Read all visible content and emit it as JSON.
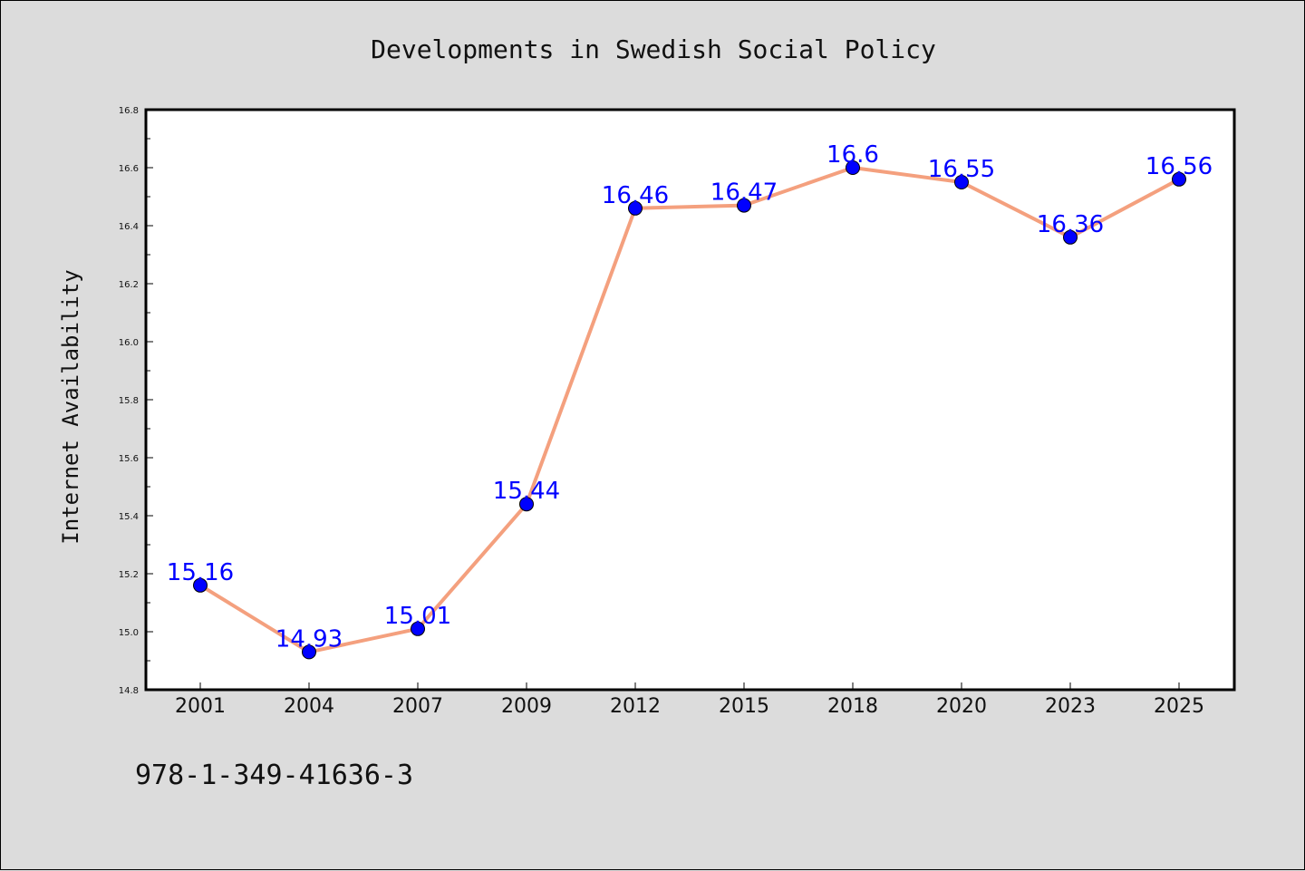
{
  "chart_data": {
    "type": "line",
    "title": "Developments in Swedish Social Policy",
    "ylabel": "Internet Availability",
    "xlabel": "",
    "categories": [
      "2001",
      "2004",
      "2007",
      "2009",
      "2012",
      "2015",
      "2018",
      "2020",
      "2023",
      "2025"
    ],
    "series": [
      {
        "values": [
          15.16,
          14.93,
          15.01,
          15.44,
          16.46,
          16.47,
          16.6,
          16.55,
          16.36,
          16.56
        ],
        "data_labels": [
          "15.16",
          "14.93",
          "15.01",
          "15.44",
          "16.46",
          "16.47",
          "16.6",
          "16.55",
          "16.36",
          "16.56"
        ],
        "line_color": "#f4a07e",
        "marker_color": "#0000ff",
        "label_color": "#0000ff"
      }
    ],
    "ylim": [
      14.8,
      16.8
    ],
    "yticks": [
      14.8,
      15.0,
      15.2,
      15.4,
      15.6,
      15.8,
      16.0,
      16.2,
      16.4,
      16.6,
      16.8
    ],
    "ytick_labels": [
      "14.8",
      "15.0",
      "15.2",
      "15.4",
      "15.6",
      "15.8",
      "16.0",
      "16.2",
      "16.4",
      "16.6",
      "16.8"
    ],
    "grid": false,
    "legend": "none",
    "annotation": "978-1-349-41636-3"
  },
  "colors": {
    "background": "#dcdcdc",
    "plot_background": "#ffffff"
  }
}
